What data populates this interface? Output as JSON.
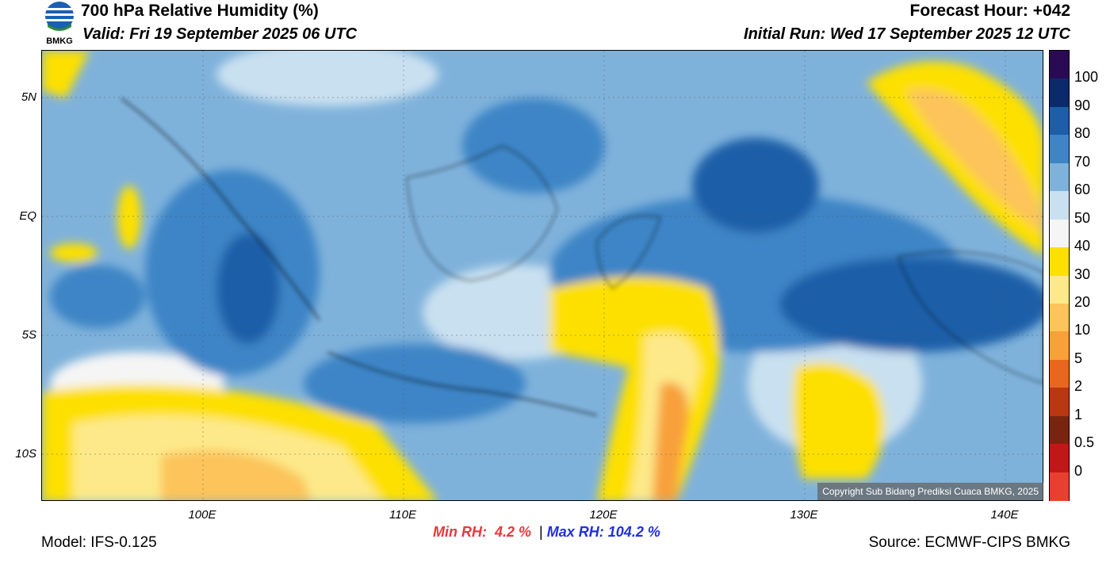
{
  "header": {
    "title": "700 hPa Relative Humidity (%)",
    "valid": "Valid: Fri 19 September 2025 06 UTC",
    "forecast_hour": "Forecast Hour: +042",
    "initial_run": "Initial Run: Wed 17 September 2025 12 UTC"
  },
  "logo": {
    "text": "BMKG",
    "icon": "bmkg-logo-icon"
  },
  "map": {
    "lat_labels": [
      "5N",
      "EQ",
      "5S",
      "10S"
    ],
    "lon_labels": [
      "100E",
      "110E",
      "120E",
      "130E",
      "140E"
    ],
    "copyright": "Copyright Sub Bidang Prediksi Cuaca BMKG, 2025"
  },
  "colorbar": {
    "labels": [
      "100",
      "90",
      "80",
      "70",
      "60",
      "50",
      "40",
      "30",
      "20",
      "10",
      "5",
      "2",
      "1",
      "0.5",
      "0"
    ],
    "colors": [
      "#2a0a55",
      "#0b2a6e",
      "#1d5ea8",
      "#3d85c6",
      "#7fb2db",
      "#c9e0f0",
      "#f5f5f5",
      "#fde000",
      "#fde98a",
      "#fcc45a",
      "#f8a03a",
      "#e8671f",
      "#b8380f",
      "#7a2410",
      "#c01818",
      "#e84030"
    ]
  },
  "stats": {
    "min_label": "Min RH:",
    "min_value": "4.2 %",
    "separator": "|",
    "max_label": "Max RH:",
    "max_value": "104.2 %"
  },
  "footer": {
    "model": "Model: IFS-0.125",
    "source": "Source: ECMWF-CIPS BMKG"
  }
}
